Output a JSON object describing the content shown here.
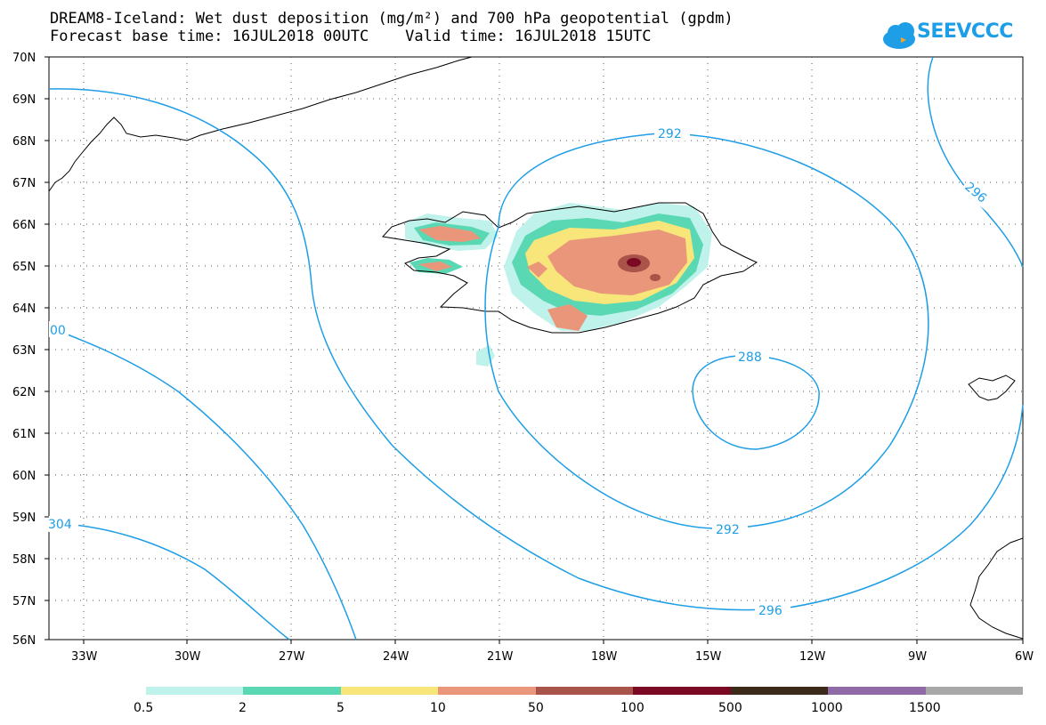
{
  "header": {
    "title_line1": "DREAM8-Iceland: Wet dust deposition (mg/m²) and 700 hPa geopotential (gpdm)",
    "title_line2": "Forecast base time: 16JUL2018 00UTC    Valid time: 16JUL2018 15UTC",
    "logo_text": "SEEVCCC"
  },
  "map": {
    "lat_labels": [
      "70N",
      "69N",
      "68N",
      "67N",
      "66N",
      "65N",
      "64N",
      "63N",
      "62N",
      "61N",
      "60N",
      "59N",
      "58N",
      "57N",
      "56N"
    ],
    "lon_labels": [
      "33W",
      "30W",
      "27W",
      "24W",
      "21W",
      "18W",
      "15W",
      "12W",
      "9W",
      "6W"
    ],
    "contour_color": "#1e9ee6",
    "contour_labels": [
      "292",
      "296",
      "288",
      "292",
      "296",
      "00",
      "304"
    ]
  },
  "legend": {
    "thresholds": [
      "0.5",
      "2",
      "5",
      "10",
      "50",
      "100",
      "500",
      "1000",
      "1500"
    ],
    "colors": [
      "#bff2ea",
      "#5ad8b4",
      "#f8e67a",
      "#e9967a",
      "#a9544a",
      "#7a0a24",
      "#3b2a1a",
      "#8f6aa6",
      "#a8a8a8"
    ]
  }
}
